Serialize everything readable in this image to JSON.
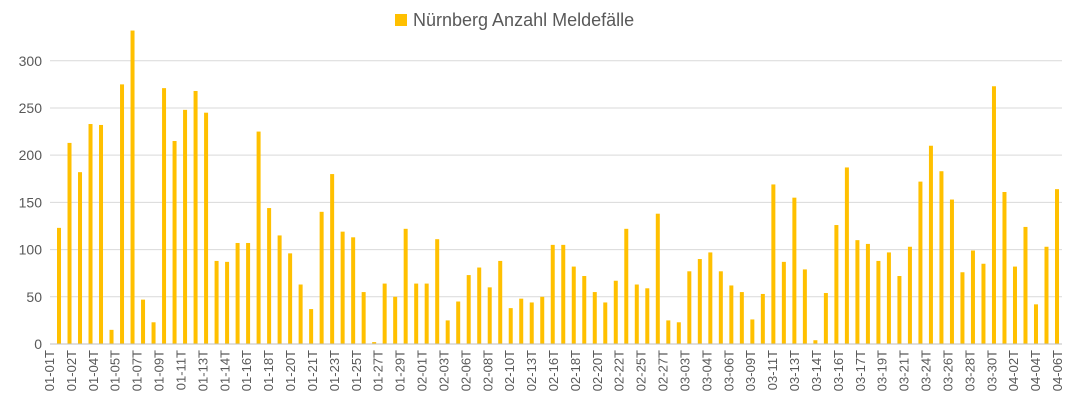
{
  "chart_data": {
    "type": "bar",
    "title": "",
    "xlabel": "",
    "ylabel": "",
    "ylim": [
      0,
      340
    ],
    "yticks": [
      0,
      50,
      100,
      150,
      200,
      250,
      300
    ],
    "grid": true,
    "legend_position": "top-center",
    "colors": {
      "bar": "#FFC000",
      "grid": "#D9D9D9",
      "axis": "#BFBFBF",
      "text": "#595959"
    },
    "series": [
      {
        "name": "Nürnberg Anzahl Meldefälle",
        "values": [
          123,
          213,
          182,
          233,
          232,
          15,
          275,
          332,
          47,
          23,
          271,
          215,
          248,
          268,
          245,
          88,
          87,
          107,
          107,
          225,
          144,
          115,
          96,
          63,
          37,
          140,
          180,
          119,
          113,
          55,
          2,
          64,
          50,
          122,
          64,
          64,
          111,
          25,
          45,
          73,
          81,
          60,
          88,
          38,
          48,
          44,
          50,
          105,
          105,
          82,
          72,
          55,
          44,
          67,
          122,
          63,
          59,
          138,
          25,
          23,
          77,
          90,
          97,
          77,
          62,
          55,
          26,
          53,
          169,
          87,
          155,
          79,
          4,
          54,
          126,
          187,
          110,
          106,
          88,
          97,
          72,
          103,
          172,
          210,
          183,
          153,
          76,
          99,
          85,
          273,
          161,
          82,
          124,
          42,
          103,
          164
        ]
      }
    ],
    "tick_labels": [
      "01-01T",
      "01-02T",
      "01-04T",
      "01-05T",
      "01-07T",
      "01-09T",
      "01-11T",
      "01-13T",
      "01-14T",
      "01-16T",
      "01-18T",
      "01-20T",
      "01-21T",
      "01-23T",
      "01-25T",
      "01-27T",
      "01-29T",
      "02-01T",
      "02-03T",
      "02-06T",
      "02-08T",
      "02-10T",
      "02-13T",
      "02-16T",
      "02-18T",
      "02-20T",
      "02-22T",
      "02-25T",
      "02-27T",
      "03-03T",
      "03-04T",
      "03-06T",
      "03-09T",
      "03-11T",
      "03-13T",
      "03-14T",
      "03-16T",
      "03-17T",
      "03-19T",
      "03-21T",
      "03-24T",
      "03-26T",
      "03-28T",
      "03-30T",
      "04-02T",
      "04-04T",
      "04-06T"
    ]
  }
}
